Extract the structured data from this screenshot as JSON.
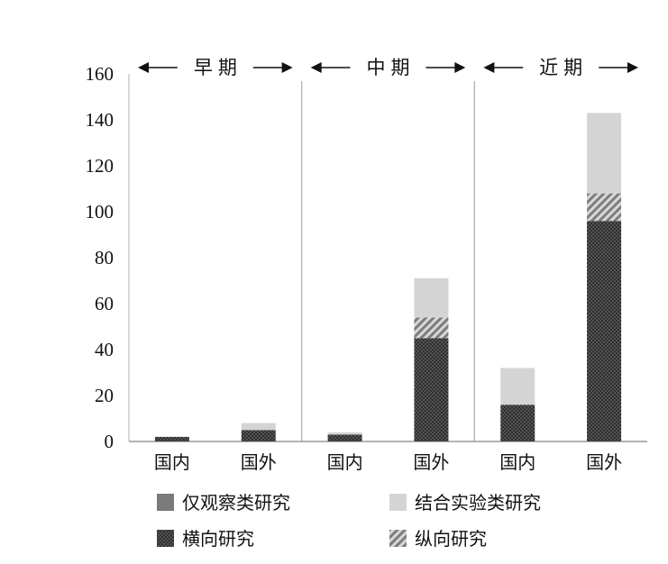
{
  "chart_data": {
    "type": "bar",
    "stacked": true,
    "categories": [
      "国内",
      "国外",
      "国内",
      "国外",
      "国内",
      "国外"
    ],
    "periods": [
      {
        "label": "早期",
        "categories": [
          0,
          1
        ]
      },
      {
        "label": "中期",
        "categories": [
          2,
          3
        ]
      },
      {
        "label": "近期",
        "categories": [
          4,
          5
        ]
      }
    ],
    "ylim": [
      0,
      160
    ],
    "yticks": [
      0,
      20,
      40,
      60,
      80,
      100,
      120,
      140,
      160
    ],
    "series": [
      {
        "name": "仅观察类研究",
        "pattern": "solid",
        "color": "#7a7a7a",
        "values": [
          0,
          0,
          0,
          0,
          0,
          0
        ]
      },
      {
        "name": "横向研究",
        "pattern": "crosshatch",
        "color": "#555555",
        "values": [
          2,
          5,
          3,
          45,
          16,
          96
        ]
      },
      {
        "name": "纵向研究",
        "pattern": "diagonal",
        "color": "#8c8c8c",
        "values": [
          0,
          0,
          0,
          9,
          0,
          12
        ]
      },
      {
        "name": "结合实验类研究",
        "pattern": "light",
        "color": "#d4d4d4",
        "values": [
          0,
          3,
          1,
          17,
          16,
          35
        ]
      }
    ],
    "legend": {
      "placement": "bottom",
      "order": [
        "仅观察类研究",
        "结合实验类研究",
        "横向研究",
        "纵向研究"
      ]
    },
    "grid": false,
    "xlabel": "",
    "ylabel": "",
    "title": ""
  }
}
